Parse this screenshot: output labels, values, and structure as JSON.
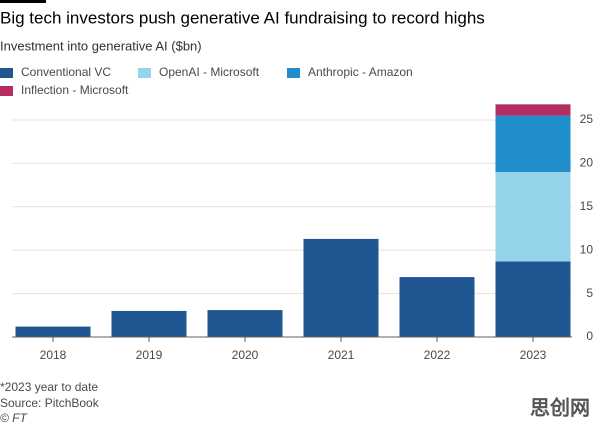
{
  "chart_data": {
    "type": "stacked_bar",
    "title": "Big tech investors push generative AI fundraising to record highs",
    "subtitle": "Investment into generative AI ($bn)",
    "categories": [
      "2018",
      "2019",
      "2020",
      "2021",
      "2022",
      "2023"
    ],
    "series": [
      {
        "name": "Conventional VC",
        "color": "#1f5591",
        "values": [
          1.2,
          3.0,
          3.1,
          11.3,
          6.9,
          8.7
        ]
      },
      {
        "name": "OpenAI - Microsoft",
        "color": "#95d4ea",
        "values": [
          0,
          0,
          0,
          0,
          0,
          10.3
        ]
      },
      {
        "name": "Anthropic - Amazon",
        "color": "#1f8ecb",
        "values": [
          0,
          0,
          0,
          0,
          0,
          6.5
        ]
      },
      {
        "name": "Inflection - Microsoft",
        "color": "#b62e61",
        "values": [
          0,
          0,
          0,
          0,
          0,
          1.3
        ]
      }
    ],
    "ylim": [
      0,
      27
    ],
    "yticks": [
      0,
      5,
      10,
      15,
      20,
      25
    ],
    "grid": true,
    "notes": [
      "*2023 year to date",
      "Source: PitchBook",
      "© FT"
    ],
    "watermark": "思创网"
  }
}
